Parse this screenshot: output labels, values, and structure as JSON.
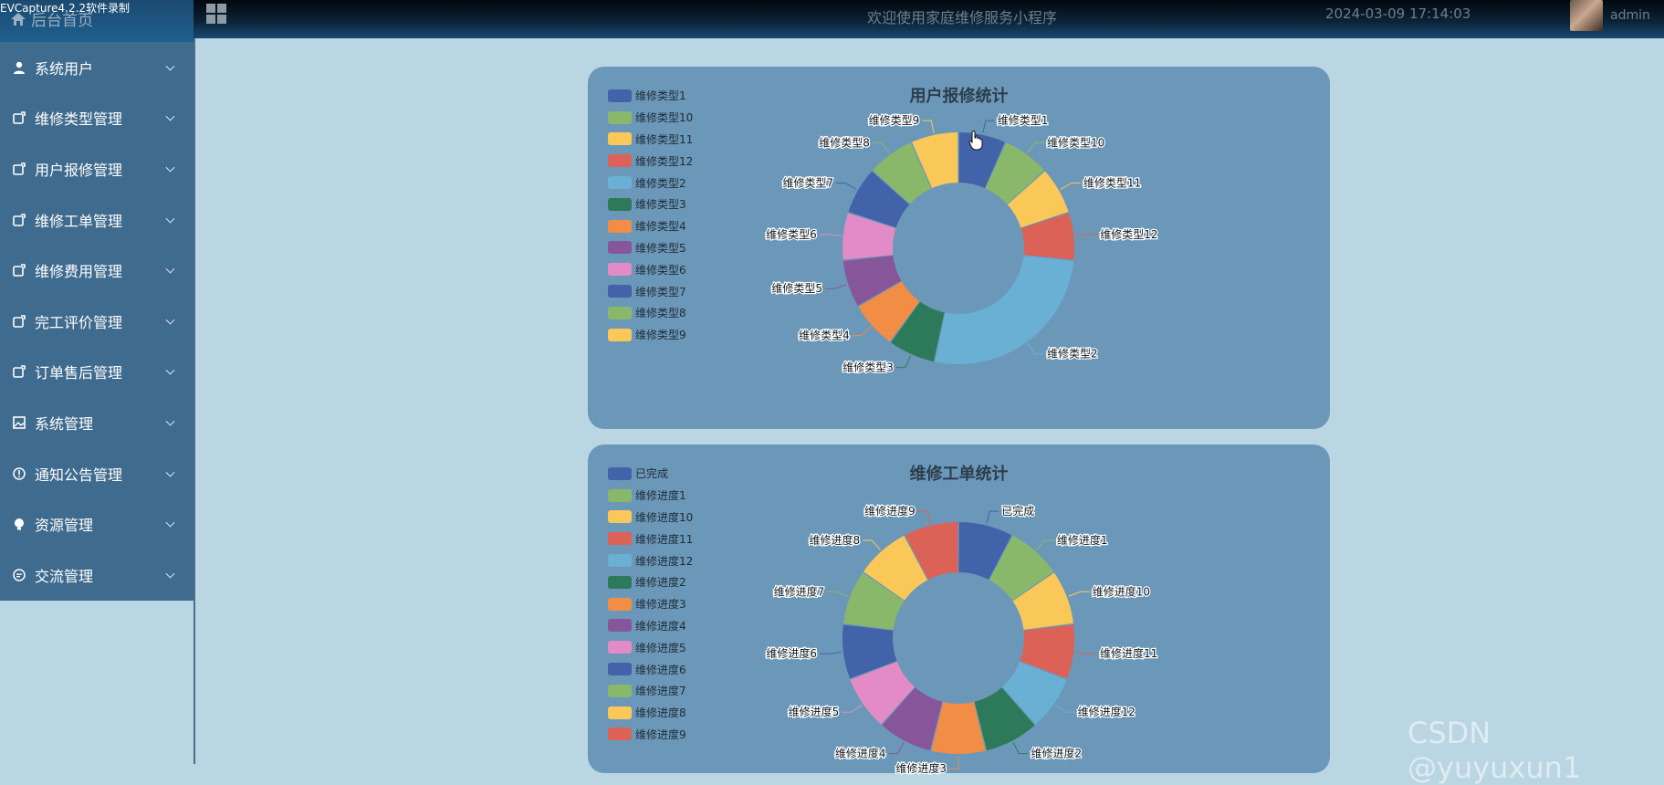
{
  "capture": "EVCapture4.2.2软件录制",
  "header": {
    "home": "后台首页",
    "welcome": "欢迎使用家庭维修服务小程序",
    "datetime": "2024-03-09 17:14:03",
    "user": "admin"
  },
  "sidebar": {
    "items": [
      {
        "label": "系统用户",
        "icon": "user-icon"
      },
      {
        "label": "维修类型管理",
        "icon": "edit-icon"
      },
      {
        "label": "用户报修管理",
        "icon": "edit-icon"
      },
      {
        "label": "维修工单管理",
        "icon": "edit-icon"
      },
      {
        "label": "维修费用管理",
        "icon": "edit-icon"
      },
      {
        "label": "完工评价管理",
        "icon": "edit-icon"
      },
      {
        "label": "订单售后管理",
        "icon": "edit-icon"
      },
      {
        "label": "系统管理",
        "icon": "image-icon"
      },
      {
        "label": "通知公告管理",
        "icon": "info-icon"
      },
      {
        "label": "资源管理",
        "icon": "bulb-icon"
      },
      {
        "label": "交流管理",
        "icon": "chat-icon"
      }
    ]
  },
  "palette": [
    "#4262a9",
    "#8ab86b",
    "#fac858",
    "#dc6257",
    "#6ab0d4",
    "#2d7a5a",
    "#f28d45",
    "#87569a",
    "#e38bc6"
  ],
  "chart_data": [
    {
      "type": "pie",
      "variant": "donut",
      "title": "用户报修统计",
      "categories": [
        "维修类型1",
        "维修类型10",
        "维修类型11",
        "维修类型12",
        "维修类型2",
        "维修类型3",
        "维修类型4",
        "维修类型5",
        "维修类型6",
        "维修类型7",
        "维修类型8",
        "维修类型9"
      ],
      "values": [
        1,
        1,
        1,
        1,
        4,
        1,
        1,
        1,
        1,
        1,
        1,
        1
      ],
      "legend": "top-left"
    },
    {
      "type": "pie",
      "variant": "donut",
      "title": "维修工单统计",
      "categories": [
        "已完成",
        "维修进度1",
        "维修进度10",
        "维修进度11",
        "维修进度12",
        "维修进度2",
        "维修进度3",
        "维修进度4",
        "维修进度5",
        "维修进度6",
        "维修进度7",
        "维修进度8",
        "维修进度9"
      ],
      "values": [
        1,
        1,
        1,
        1,
        1,
        1,
        1,
        1,
        1,
        1,
        1,
        1,
        1
      ],
      "legend": "top-left"
    }
  ],
  "watermark": "CSDN @yuyuxun1"
}
